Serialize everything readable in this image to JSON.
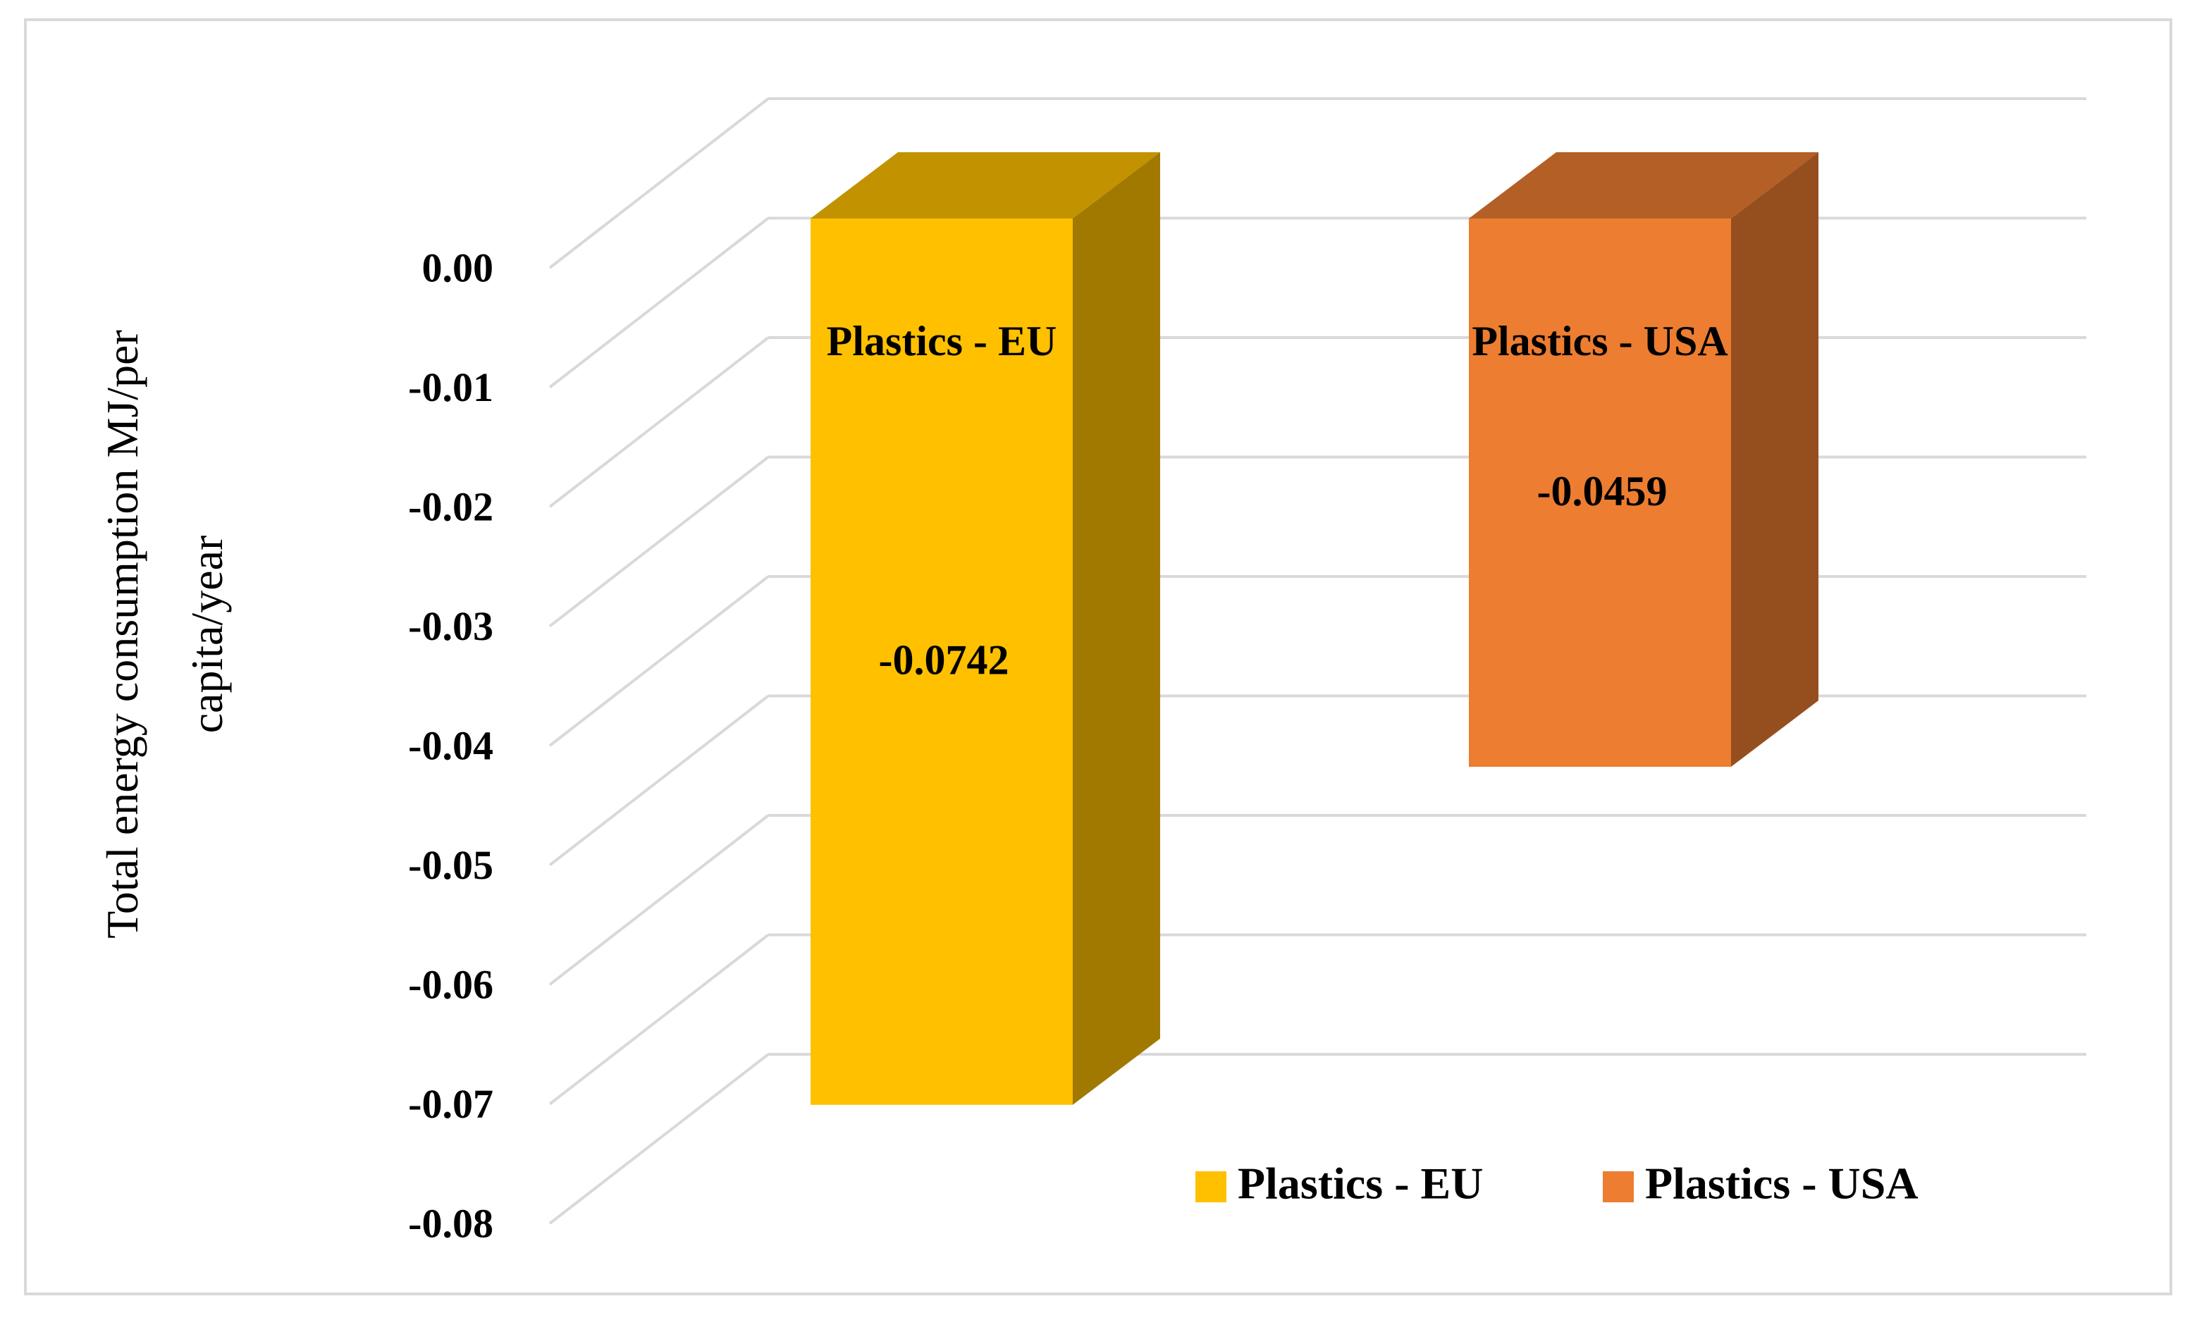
{
  "chart_data": {
    "type": "bar3d",
    "y_label": "Total energy consumption MJ/per capita/year",
    "series": [
      {
        "name": "Plastics - EU",
        "color": "#FFC000",
        "values": [
          -0.0742
        ]
      },
      {
        "name": "Plastics - USA",
        "color": "#ED7D31",
        "values": [
          -0.0459
        ]
      }
    ],
    "ylim": [
      -0.08,
      0
    ],
    "yticks": [
      {
        "value": 0,
        "label": "0.00"
      },
      {
        "value": -0.01,
        "label": "-0.01"
      },
      {
        "value": -0.02,
        "label": "-0.02"
      },
      {
        "value": -0.03,
        "label": "-0.03"
      },
      {
        "value": -0.04,
        "label": "-0.04"
      },
      {
        "value": -0.05,
        "label": "-0.05"
      },
      {
        "value": -0.06,
        "label": "-0.06"
      },
      {
        "value": -0.07,
        "label": "-0.07"
      },
      {
        "value": -0.08,
        "label": "-0.08"
      }
    ],
    "grid": true,
    "legend": "bottom-right",
    "data_labels": true
  }
}
